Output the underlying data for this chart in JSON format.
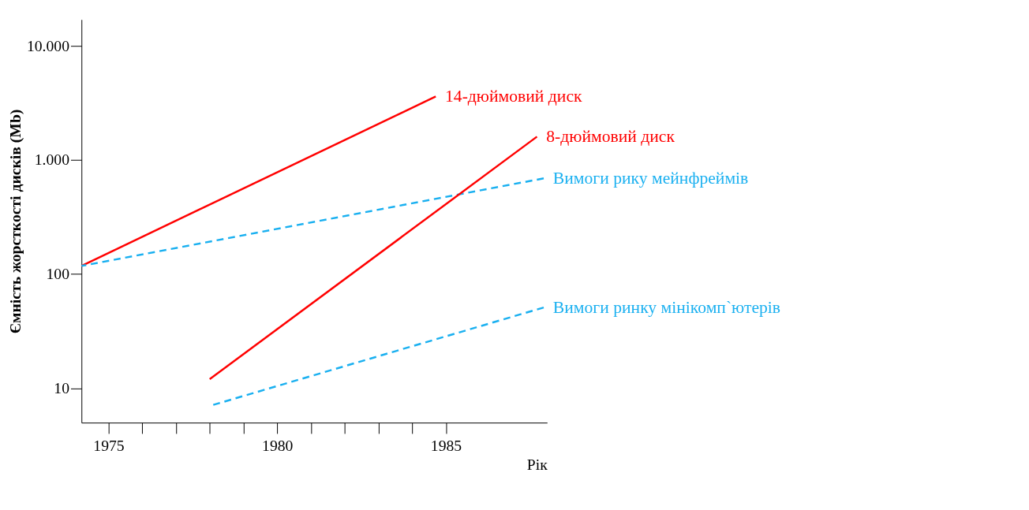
{
  "chart_data": {
    "type": "line",
    "xlabel": "Рік",
    "ylabel": "Ємність жорсткості дисків (Mb)",
    "xlim": [
      1974.2,
      1988
    ],
    "ylim": [
      5,
      17000
    ],
    "log": "y",
    "grid": false,
    "legend": "right",
    "xticks": [
      1975,
      {
        "value": 1976,
        "label": null
      },
      {
        "value": 1977,
        "label": null
      },
      {
        "value": 1978,
        "label": null
      },
      {
        "value": 1979,
        "label": null
      },
      1980,
      {
        "value": 1981,
        "label": null
      },
      {
        "value": 1982,
        "label": null
      },
      {
        "value": 1983,
        "label": null
      },
      {
        "value": 1984,
        "label": null
      },
      1985
    ],
    "yticks": [
      10,
      100,
      {
        "value": 1000,
        "label": "1.000"
      },
      {
        "value": 10000,
        "label": "10.000"
      }
    ],
    "series": [
      {
        "name": "14-дюймовий диск",
        "color": "#ff0000",
        "line_style": "solid",
        "x": [
          1974.2,
          1984.7
        ],
        "values": [
          118,
          3600
        ]
      },
      {
        "name": "Вимоги рику мейнфреймів",
        "color": "#1ab0f0",
        "line_style": "dashed",
        "x": [
          1974.2,
          1987.9
        ],
        "values": [
          118,
          690
        ]
      },
      {
        "name": "8-дюймовий диск",
        "color": "#ff0000",
        "line_style": "solid",
        "x": [
          1978.0,
          1987.7
        ],
        "values": [
          12,
          1600
        ]
      },
      {
        "name": "Вимоги ринку мінікомп`ютерів",
        "color": "#1ab0f0",
        "line_style": "dashed",
        "x": [
          1978.0,
          1987.9
        ],
        "values": [
          7,
          51
        ]
      }
    ]
  }
}
